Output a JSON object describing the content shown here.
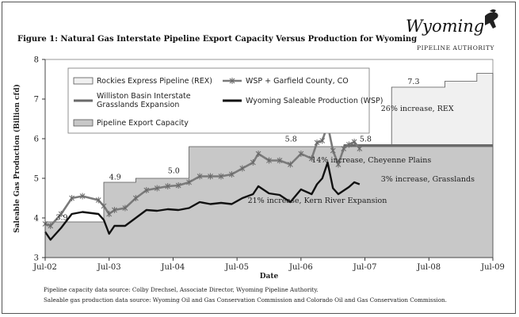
{
  "figure": {
    "title": "Figure 1: Natural Gas Interstate Pipeline Export Capacity Versus Production for Wyoming",
    "logo": {
      "name": "Wyoming",
      "subtitle": "PIPELINE AUTHORITY"
    },
    "sources": [
      "Pipeline capacity data source: Colby Drechsel, Associate Director, Wyoming Pipeline Authority.",
      "Saleable gas production data source: Wyoming Oil and Gas Conservation Commission and Colorado Oil and Gas Conservation Commission."
    ]
  },
  "chart_data": {
    "type": "line",
    "title": "Figure 1: Natural Gas Interstate Pipeline Export Capacity Versus Production for Wyoming",
    "xlabel": "Date",
    "ylabel": "Saleable Gas Production (Billion cfd)",
    "xlim": [
      "2002-07",
      "2009-07"
    ],
    "ylim": [
      3,
      8
    ],
    "x_ticks": [
      {
        "date": "2002-07",
        "label": "Jul-02"
      },
      {
        "date": "2003-07",
        "label": "Jul-03"
      },
      {
        "date": "2004-07",
        "label": "Jul-04"
      },
      {
        "date": "2005-07",
        "label": "Jul-05"
      },
      {
        "date": "2006-07",
        "label": "Jul-06"
      },
      {
        "date": "2007-07",
        "label": "Jul-07"
      },
      {
        "date": "2008-07",
        "label": "Jul-08"
      },
      {
        "date": "2009-07",
        "label": "Jul-09"
      }
    ],
    "y_ticks": [
      3,
      4,
      5,
      6,
      7,
      8
    ],
    "grid": false,
    "legend": [
      {
        "label": "Rockies Express Pipeline (REX)",
        "kind": "area",
        "color": "#f0f0f0"
      },
      {
        "label": "WSP + Garfield County, CO",
        "kind": "line-marker",
        "color": "#7a7a7a"
      },
      {
        "label": "Williston Basin Interstate Grasslands Expansion",
        "kind": "line",
        "color": "#6a6a6a"
      },
      {
        "label": "Wyoming Saleable Production (WSP)",
        "kind": "line",
        "color": "#111111"
      },
      {
        "label": "Pipeline Export Capacity",
        "kind": "area",
        "color": "#c8c8c8"
      }
    ],
    "series": [
      {
        "name": "Pipeline Export Capacity",
        "type": "step-area",
        "color": "#c8c8c8",
        "points": [
          {
            "x": "2002-07",
            "y": 3.9
          },
          {
            "x": "2003-06",
            "y": 4.9
          },
          {
            "x": "2003-12",
            "y": 5.0
          },
          {
            "x": "2004-10",
            "y": 5.8
          },
          {
            "x": "2009-07",
            "y": 5.8
          }
        ]
      },
      {
        "name": "Rockies Express Pipeline (REX)",
        "type": "step-area",
        "color": "#f0f0f0",
        "points": [
          {
            "x": "2007-12",
            "y": 7.3
          },
          {
            "x": "2008-10",
            "y": 7.45
          },
          {
            "x": "2009-04",
            "y": 7.65
          },
          {
            "x": "2009-07",
            "y": 7.65
          }
        ]
      },
      {
        "name": "Williston Basin Interstate Grasslands Expansion",
        "type": "line",
        "color": "#6a6a6a",
        "points": [
          {
            "x": "2007-03",
            "y": 5.83
          },
          {
            "x": "2009-07",
            "y": 5.83
          }
        ]
      },
      {
        "name": "Wyoming Saleable Production (WSP)",
        "type": "line",
        "color": "#111111",
        "points": [
          {
            "x": "2002-07",
            "y": 3.65
          },
          {
            "x": "2002-08",
            "y": 3.45
          },
          {
            "x": "2002-10",
            "y": 3.75
          },
          {
            "x": "2002-12",
            "y": 4.1
          },
          {
            "x": "2003-02",
            "y": 4.15
          },
          {
            "x": "2003-05",
            "y": 4.1
          },
          {
            "x": "2003-06",
            "y": 3.95
          },
          {
            "x": "2003-07",
            "y": 3.6
          },
          {
            "x": "2003-08",
            "y": 3.8
          },
          {
            "x": "2003-10",
            "y": 3.8
          },
          {
            "x": "2003-12",
            "y": 4.0
          },
          {
            "x": "2004-02",
            "y": 4.2
          },
          {
            "x": "2004-04",
            "y": 4.18
          },
          {
            "x": "2004-06",
            "y": 4.22
          },
          {
            "x": "2004-08",
            "y": 4.2
          },
          {
            "x": "2004-10",
            "y": 4.25
          },
          {
            "x": "2004-12",
            "y": 4.4
          },
          {
            "x": "2005-02",
            "y": 4.35
          },
          {
            "x": "2005-04",
            "y": 4.38
          },
          {
            "x": "2005-06",
            "y": 4.35
          },
          {
            "x": "2005-08",
            "y": 4.5
          },
          {
            "x": "2005-10",
            "y": 4.6
          },
          {
            "x": "2005-11",
            "y": 4.8
          },
          {
            "x": "2006-01",
            "y": 4.62
          },
          {
            "x": "2006-03",
            "y": 4.58
          },
          {
            "x": "2006-05",
            "y": 4.4
          },
          {
            "x": "2006-07",
            "y": 4.72
          },
          {
            "x": "2006-09",
            "y": 4.6
          },
          {
            "x": "2006-10",
            "y": 4.85
          },
          {
            "x": "2006-11",
            "y": 5.0
          },
          {
            "x": "2006-12",
            "y": 5.4
          },
          {
            "x": "2007-01",
            "y": 4.75
          },
          {
            "x": "2007-02",
            "y": 4.6
          },
          {
            "x": "2007-04",
            "y": 4.78
          },
          {
            "x": "2007-05",
            "y": 4.9
          },
          {
            "x": "2007-06",
            "y": 4.85
          }
        ]
      },
      {
        "name": "WSP + Garfield County, CO",
        "type": "line-marker",
        "color": "#7a7a7a",
        "points": [
          {
            "x": "2002-07",
            "y": 3.85
          },
          {
            "x": "2002-08",
            "y": 3.8
          },
          {
            "x": "2002-10",
            "y": 4.1
          },
          {
            "x": "2002-12",
            "y": 4.5
          },
          {
            "x": "2003-02",
            "y": 4.55
          },
          {
            "x": "2003-05",
            "y": 4.45
          },
          {
            "x": "2003-06",
            "y": 4.3
          },
          {
            "x": "2003-07",
            "y": 4.1
          },
          {
            "x": "2003-08",
            "y": 4.2
          },
          {
            "x": "2003-10",
            "y": 4.25
          },
          {
            "x": "2003-12",
            "y": 4.5
          },
          {
            "x": "2004-02",
            "y": 4.7
          },
          {
            "x": "2004-04",
            "y": 4.75
          },
          {
            "x": "2004-06",
            "y": 4.8
          },
          {
            "x": "2004-08",
            "y": 4.82
          },
          {
            "x": "2004-10",
            "y": 4.9
          },
          {
            "x": "2004-12",
            "y": 5.05
          },
          {
            "x": "2005-02",
            "y": 5.05
          },
          {
            "x": "2005-04",
            "y": 5.05
          },
          {
            "x": "2005-06",
            "y": 5.1
          },
          {
            "x": "2005-08",
            "y": 5.25
          },
          {
            "x": "2005-10",
            "y": 5.4
          },
          {
            "x": "2005-11",
            "y": 5.62
          },
          {
            "x": "2006-01",
            "y": 5.45
          },
          {
            "x": "2006-03",
            "y": 5.45
          },
          {
            "x": "2006-05",
            "y": 5.35
          },
          {
            "x": "2006-07",
            "y": 5.62
          },
          {
            "x": "2006-09",
            "y": 5.5
          },
          {
            "x": "2006-10",
            "y": 5.9
          },
          {
            "x": "2006-11",
            "y": 5.95
          },
          {
            "x": "2006-12",
            "y": 6.35
          },
          {
            "x": "2007-01",
            "y": 5.7
          },
          {
            "x": "2007-02",
            "y": 5.35
          },
          {
            "x": "2007-03",
            "y": 5.75
          },
          {
            "x": "2007-04",
            "y": 5.85
          },
          {
            "x": "2007-05",
            "y": 5.92
          },
          {
            "x": "2007-06",
            "y": 5.75
          }
        ]
      }
    ],
    "annotations": [
      {
        "text": "3.9",
        "x": "2002-09",
        "y": 3.95
      },
      {
        "text": "4.9",
        "x": "2003-07",
        "y": 4.97
      },
      {
        "text": "5.0",
        "x": "2004-06",
        "y": 5.13
      },
      {
        "text": "5.8",
        "x": "2006-04",
        "y": 5.93
      },
      {
        "text": "5.8",
        "x": "2007-06",
        "y": 5.93
      },
      {
        "text": "7.3",
        "x": "2008-03",
        "y": 7.38
      },
      {
        "text": "26% increase, REX",
        "x": "2007-10",
        "y": 6.7
      },
      {
        "text": "14% increase, Cheyenne Plains",
        "x": "2006-09",
        "y": 5.4
      },
      {
        "text": "3% increase, Grasslands",
        "x": "2007-10",
        "y": 4.92
      },
      {
        "text": "21% increase, Kern River Expansion",
        "x": "2005-09",
        "y": 4.38
      }
    ]
  }
}
